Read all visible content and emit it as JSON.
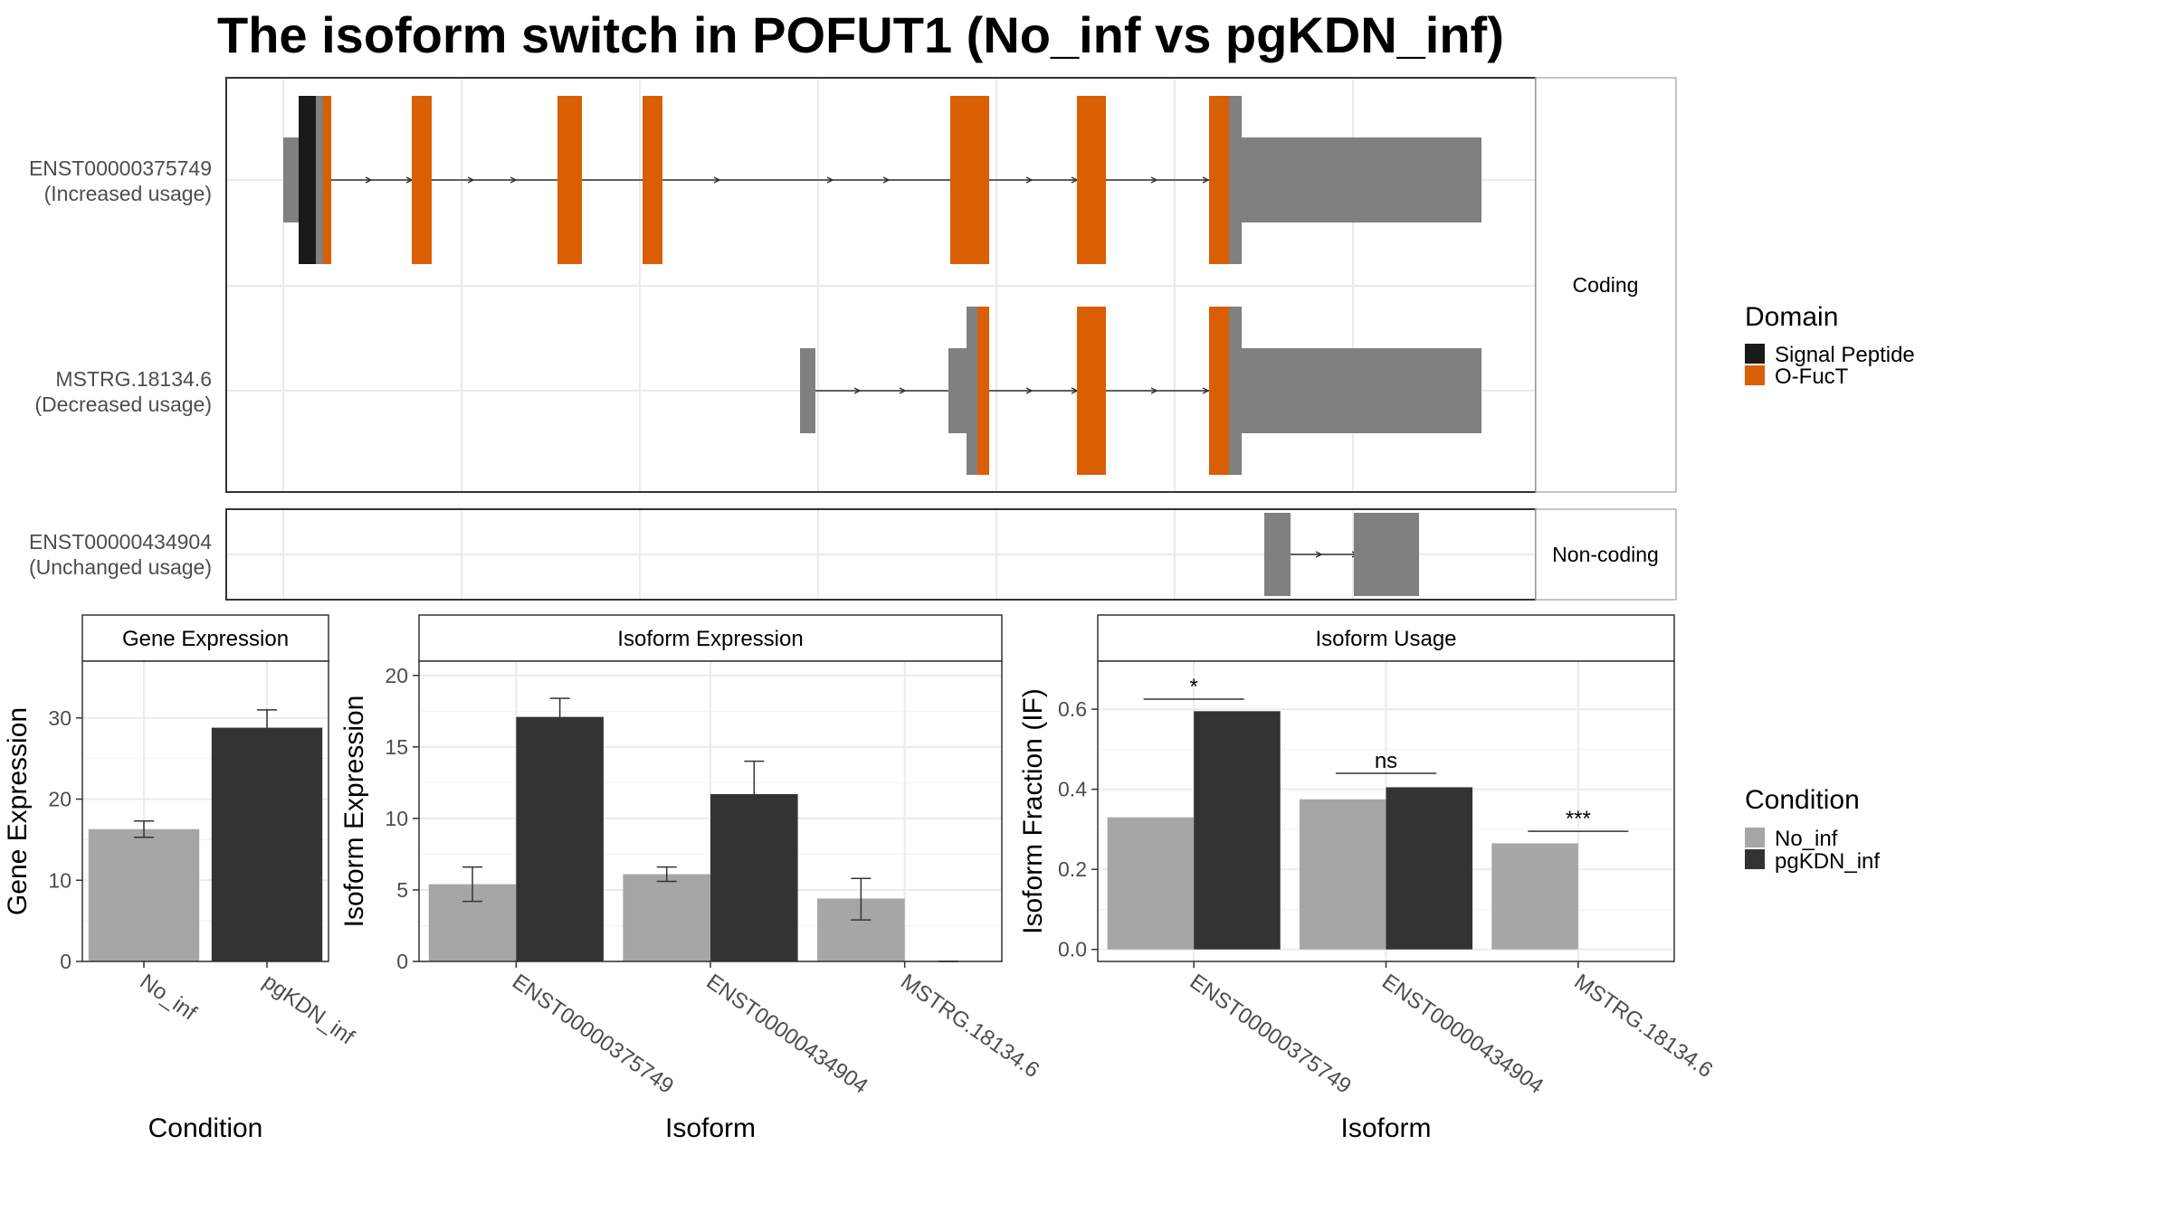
{
  "title": "The isoform switch in POFUT1 (No_inf vs pgKDN_inf)",
  "colors": {
    "signal_peptide": "#1a1a1a",
    "ofuct": "#d95f02",
    "exon_gray": "#808080",
    "no_inf": "#a6a6a6",
    "pgkdn_inf": "#333333",
    "grid": "#ebebeb",
    "strip_border": "#b3b3b3"
  },
  "structure_panel": {
    "coding_strip": "Coding",
    "noncoding_strip": "Non-coding",
    "isoforms": [
      {
        "id": "ENST00000375749",
        "usage": "(Increased usage)"
      },
      {
        "id": "MSTRG.18134.6",
        "usage": "(Decreased usage)"
      },
      {
        "id": "ENST00000434904",
        "usage": "(Unchanged usage)"
      }
    ]
  },
  "legends": {
    "domain": {
      "title": "Domain",
      "items": [
        {
          "label": "Signal Peptide",
          "color": "#1a1a1a"
        },
        {
          "label": "O-FucT",
          "color": "#d95f02"
        }
      ]
    },
    "condition": {
      "title": "Condition",
      "items": [
        {
          "label": "No_inf",
          "color": "#a6a6a6"
        },
        {
          "label": "pgKDN_inf",
          "color": "#333333"
        }
      ]
    }
  },
  "chart_data": [
    {
      "type": "bar",
      "title": "Gene Expression",
      "xlabel": "Condition",
      "ylabel": "Gene Expression",
      "ylim": [
        0,
        37
      ],
      "yticks": [
        0,
        10,
        20,
        30
      ],
      "categories": [
        "No_inf",
        "pgKDN_inf"
      ],
      "values": [
        16.3,
        28.8
      ],
      "errors": [
        [
          15.3,
          17.3
        ],
        [
          26.7,
          31.0
        ]
      ]
    },
    {
      "type": "bar",
      "title": "Isoform Expression",
      "xlabel": "Isoform",
      "ylabel": "Isoform Expression",
      "ylim": [
        0,
        21
      ],
      "yticks": [
        0,
        5,
        10,
        15,
        20
      ],
      "categories": [
        "ENST00000375749",
        "ENST00000434904",
        "MSTRG.18134.6"
      ],
      "series": [
        {
          "name": "No_inf",
          "values": [
            5.4,
            6.1,
            4.4
          ],
          "errors": [
            [
              4.2,
              6.6
            ],
            [
              5.6,
              6.6
            ],
            [
              2.9,
              5.8
            ]
          ]
        },
        {
          "name": "pgKDN_inf",
          "values": [
            17.1,
            11.7,
            0.0
          ],
          "errors": [
            [
              15.8,
              18.4
            ],
            [
              9.4,
              14.0
            ],
            [
              0.0,
              0.0
            ]
          ]
        }
      ]
    },
    {
      "type": "bar",
      "title": "Isoform Usage",
      "xlabel": "Isoform",
      "ylabel": "Isoform Fraction (IF)",
      "ylim": [
        -0.03,
        0.72
      ],
      "yticks": [
        0.0,
        0.2,
        0.4,
        0.6
      ],
      "categories": [
        "ENST00000375749",
        "ENST00000434904",
        "MSTRG.18134.6"
      ],
      "series": [
        {
          "name": "No_inf",
          "values": [
            0.33,
            0.375,
            0.265
          ]
        },
        {
          "name": "pgKDN_inf",
          "values": [
            0.595,
            0.405,
            0.0
          ]
        }
      ],
      "significance": [
        "*",
        "ns",
        "***"
      ],
      "significance_level": [
        0.625,
        0.44,
        0.295
      ]
    }
  ]
}
